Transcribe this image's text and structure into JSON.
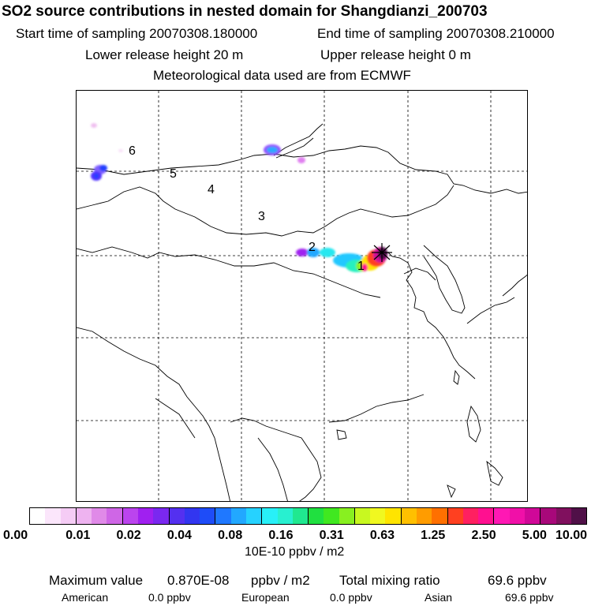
{
  "title": "SO2 source contributions in nested domain for Shangdianzi_200703",
  "start_time": "Start time of sampling 20070308.180000",
  "end_time": "End time of sampling 20070308.210000",
  "lower_release": "Lower release height   20 m",
  "upper_release": "Upper release height    0 m",
  "met_data": "Meteorological data used are from ECMWF",
  "map_labels": [
    "6",
    "5",
    "4",
    "3",
    "2",
    "1"
  ],
  "colorbar": {
    "colors": [
      "#ffffff",
      "#fbe6fb",
      "#f5ccf5",
      "#eeb3f0",
      "#e08ae8",
      "#cf66e6",
      "#bb44ee",
      "#a020f0",
      "#7a28f0",
      "#5430f0",
      "#3236f0",
      "#1e4cf8",
      "#1f78ff",
      "#22a8ff",
      "#26d2ff",
      "#28f0f8",
      "#28f0d0",
      "#20e890",
      "#20e040",
      "#40e820",
      "#88f020",
      "#c8f820",
      "#f0f820",
      "#ffe400",
      "#ffc000",
      "#ff9c00",
      "#ff7000",
      "#ff4020",
      "#ff2060",
      "#ff1090",
      "#ff18b4",
      "#f010a8",
      "#d00898",
      "#a8087a",
      "#80105e",
      "#501048"
    ],
    "tick_labels": [
      "0.00",
      "0.01",
      "0.02",
      "0.04",
      "0.08",
      "0.16",
      "0.31",
      "0.63",
      "1.25",
      "2.50",
      "5.00",
      "10.00"
    ],
    "units": "10E-10 ppbv / m2"
  },
  "summary": {
    "max_label": "Maximum value",
    "max_value": "0.870E-08",
    "max_unit": "ppbv / m2",
    "total_label": "Total mixing ratio",
    "total_value": "69.6 ppbv",
    "american_label": "American",
    "american_value": "0.0 ppbv",
    "european_label": "European",
    "european_value": "0.0 ppbv",
    "asian_label": "Asian",
    "asian_value": "69.6 ppbv"
  }
}
